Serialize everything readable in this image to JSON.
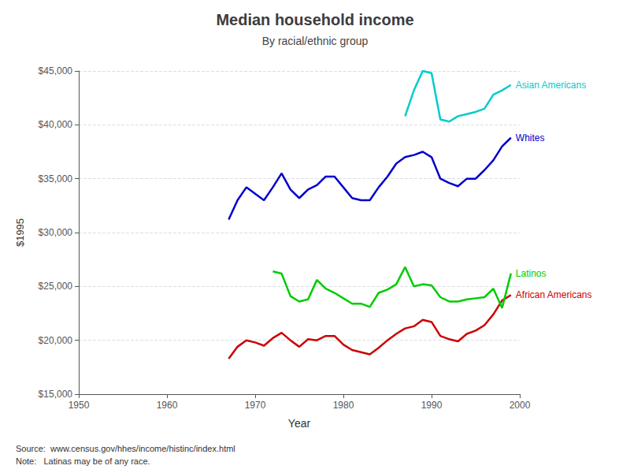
{
  "chart_data": {
    "type": "line",
    "title": "Median household income",
    "subtitle": "By racial/ethnic group",
    "xlabel": "Year",
    "ylabel": "$1995",
    "annotations": [
      "Source:  www.census.gov/hhes/income/histinc/index.html",
      "Note:   Latinas may be of any race."
    ],
    "xlim": [
      1950,
      2000
    ],
    "xticks": [
      1950,
      1960,
      1970,
      1980,
      1990,
      2000
    ],
    "ylim": [
      15000,
      45000
    ],
    "yticks": [
      {
        "value": 15000,
        "label": "$15,000"
      },
      {
        "value": 20000,
        "label": "$20,000"
      },
      {
        "value": 25000,
        "label": "$25,000"
      },
      {
        "value": 30000,
        "label": "$30,000"
      },
      {
        "value": 35000,
        "label": "$35,000"
      },
      {
        "value": 40000,
        "label": "$40,000"
      },
      {
        "value": 45000,
        "label": "$45,000"
      }
    ],
    "grid": true,
    "series": [
      {
        "name": "Whites",
        "color": "#0000CC",
        "x": [
          1967,
          1968,
          1969,
          1970,
          1971,
          1972,
          1973,
          1974,
          1975,
          1976,
          1977,
          1978,
          1979,
          1980,
          1981,
          1982,
          1983,
          1984,
          1985,
          1986,
          1987,
          1988,
          1989,
          1990,
          1991,
          1992,
          1993,
          1994,
          1995,
          1996,
          1997,
          1998,
          1999
        ],
        "values": [
          31200,
          33000,
          34200,
          33600,
          33000,
          34200,
          35500,
          34000,
          33200,
          34000,
          34400,
          35200,
          35200,
          34200,
          33200,
          33000,
          33000,
          34200,
          35200,
          36400,
          37000,
          37200,
          37500,
          37000,
          35000,
          34600,
          34300,
          35000,
          35000,
          35800,
          36700,
          38000,
          38800
        ]
      },
      {
        "name": "African Americans",
        "color": "#CC0000",
        "x": [
          1967,
          1968,
          1969,
          1970,
          1971,
          1972,
          1973,
          1974,
          1975,
          1976,
          1977,
          1978,
          1979,
          1980,
          1981,
          1982,
          1983,
          1984,
          1985,
          1986,
          1987,
          1988,
          1989,
          1990,
          1991,
          1992,
          1993,
          1994,
          1995,
          1996,
          1997,
          1998,
          1999
        ],
        "values": [
          18300,
          19400,
          20000,
          19800,
          19500,
          20200,
          20700,
          20000,
          19400,
          20100,
          20000,
          20400,
          20400,
          19600,
          19100,
          18900,
          18700,
          19300,
          20000,
          20600,
          21100,
          21300,
          21900,
          21700,
          20400,
          20100,
          19900,
          20600,
          20900,
          21400,
          22400,
          23700,
          24200
        ]
      },
      {
        "name": "Latinos",
        "color": "#00CC00",
        "x": [
          1972,
          1973,
          1974,
          1975,
          1976,
          1977,
          1978,
          1979,
          1980,
          1981,
          1982,
          1983,
          1984,
          1985,
          1986,
          1987,
          1988,
          1989,
          1990,
          1991,
          1992,
          1993,
          1994,
          1995,
          1996,
          1997,
          1998,
          1999
        ],
        "values": [
          26400,
          26200,
          24100,
          23600,
          23800,
          25600,
          24800,
          24400,
          23900,
          23400,
          23400,
          23100,
          24400,
          24700,
          25200,
          26800,
          25000,
          25200,
          25100,
          24000,
          23600,
          23600,
          23800,
          23900,
          24000,
          24800,
          23000,
          26200
        ]
      },
      {
        "name": "Asian Americans",
        "color": "#00CCCC",
        "x": [
          1987,
          1988,
          1989,
          1990,
          1991,
          1992,
          1993,
          1994,
          1995,
          1996,
          1997,
          1998,
          1999
        ],
        "values": [
          40800,
          43200,
          45000,
          44800,
          40500,
          40300,
          40800,
          41000,
          41200,
          41500,
          42800,
          43200,
          43700
        ]
      }
    ]
  }
}
